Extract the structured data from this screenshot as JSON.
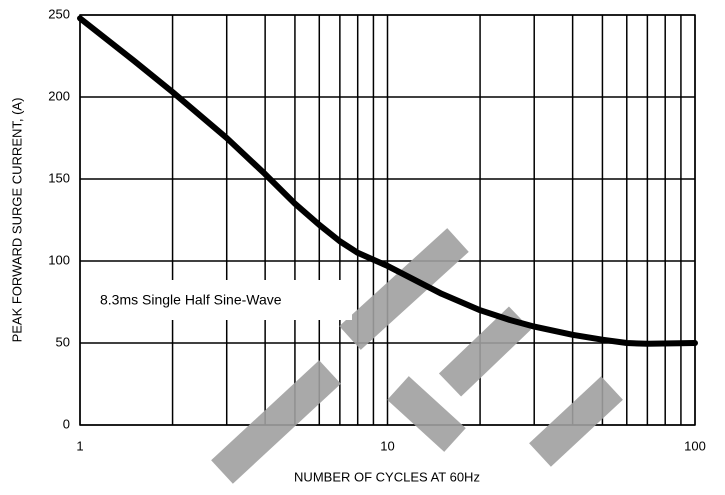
{
  "chart_data": {
    "type": "line",
    "xlabel": "NUMBER OF CYCLES AT 60Hz",
    "ylabel": "PEAK FORWARD SURGE CURRENT, (A)",
    "annotation": "8.3ms Single Half Sine-Wave",
    "x": [
      1,
      1.5,
      2,
      3,
      4,
      5,
      6,
      7,
      8,
      10,
      15,
      20,
      25,
      30,
      40,
      50,
      60,
      70,
      100
    ],
    "values": [
      248,
      222,
      203,
      175,
      153,
      135,
      122,
      112,
      105,
      97,
      80,
      70,
      64,
      60,
      55,
      52,
      50,
      49.5,
      50
    ],
    "color": "#000000",
    "xscale": "log",
    "xlim": [
      1,
      100
    ],
    "xticks": [
      1,
      10,
      100
    ],
    "xminorticks": [
      2,
      3,
      4,
      5,
      6,
      7,
      8,
      9,
      20,
      30,
      40,
      50,
      60,
      70,
      80,
      90
    ],
    "ylim": [
      0,
      250
    ],
    "yticks": [
      0,
      50,
      100,
      150,
      200,
      250
    ],
    "grid": true
  }
}
